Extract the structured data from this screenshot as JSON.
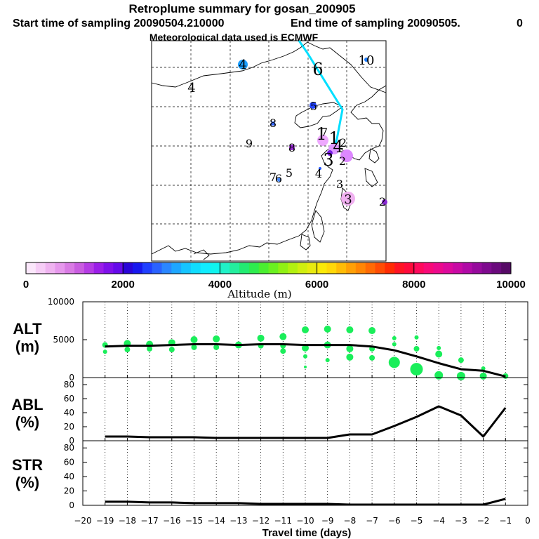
{
  "title": "Retroplume summary for gosan_200905",
  "start_label": "Start time of sampling 20090504.210000",
  "end_label": "End time of sampling 20090505.",
  "end_value": "0",
  "met_label": "Meteorological data used is ECMWF",
  "colorbar": {
    "label": "Altitude (m)",
    "ticks": [
      "0",
      "2000",
      "4000",
      "6000",
      "8000",
      "10000"
    ],
    "min": 0,
    "max": 10000
  },
  "map_labels": [
    {
      "text": "10"
    },
    {
      "text": "6"
    },
    {
      "text": "4"
    },
    {
      "text": "4"
    },
    {
      "text": "5"
    },
    {
      "text": "8"
    },
    {
      "text": "9"
    },
    {
      "text": "1"
    },
    {
      "text": "7"
    },
    {
      "text": "1"
    },
    {
      "text": "2"
    },
    {
      "text": "4"
    },
    {
      "text": "3"
    },
    {
      "text": "2"
    },
    {
      "text": "8"
    },
    {
      "text": "7"
    },
    {
      "text": "6"
    },
    {
      "text": "5"
    },
    {
      "text": "4"
    },
    {
      "text": "3"
    },
    {
      "text": "3"
    },
    {
      "text": "2"
    }
  ],
  "chart_data": {
    "type": "line",
    "xlabel": "Travel time (days)",
    "x_ticks": [
      -20,
      -19,
      -18,
      -17,
      -16,
      -15,
      -14,
      -13,
      -12,
      -11,
      -10,
      -9,
      -8,
      -7,
      -6,
      -5,
      -4,
      -3,
      -2,
      -1,
      0
    ],
    "panels": [
      {
        "name": "ALT",
        "ylabel": "ALT",
        "units": "(m)",
        "ylim": [
          0,
          10000
        ],
        "y_ticks": [
          0,
          5000,
          10000
        ],
        "x": [
          -19,
          -18,
          -17,
          -16,
          -15,
          -14,
          -13,
          -12,
          -11,
          -10,
          -9,
          -8,
          -7,
          -6,
          -5,
          -4,
          -3,
          -2,
          -1
        ],
        "mean": [
          4100,
          4200,
          4200,
          4300,
          4400,
          4400,
          4300,
          4400,
          4400,
          4300,
          4300,
          4300,
          4100,
          3600,
          2800,
          1900,
          1100,
          900,
          150
        ],
        "particles": [
          {
            "x": -19,
            "y": 4300,
            "r": 4
          },
          {
            "x": -19,
            "y": 3400,
            "r": 3
          },
          {
            "x": -18,
            "y": 4500,
            "r": 5
          },
          {
            "x": -18,
            "y": 3700,
            "r": 4
          },
          {
            "x": -17,
            "y": 4400,
            "r": 5
          },
          {
            "x": -17,
            "y": 3800,
            "r": 4
          },
          {
            "x": -16,
            "y": 4600,
            "r": 5
          },
          {
            "x": -16,
            "y": 3700,
            "r": 4
          },
          {
            "x": -15,
            "y": 5000,
            "r": 5
          },
          {
            "x": -15,
            "y": 4000,
            "r": 4
          },
          {
            "x": -14,
            "y": 5100,
            "r": 5
          },
          {
            "x": -14,
            "y": 4000,
            "r": 4
          },
          {
            "x": -13,
            "y": 4300,
            "r": 5
          },
          {
            "x": -12,
            "y": 5200,
            "r": 5
          },
          {
            "x": -12,
            "y": 4200,
            "r": 4
          },
          {
            "x": -11,
            "y": 5400,
            "r": 5
          },
          {
            "x": -11,
            "y": 4200,
            "r": 4
          },
          {
            "x": -11,
            "y": 3500,
            "r": 4
          },
          {
            "x": -10,
            "y": 6300,
            "r": 5
          },
          {
            "x": -10,
            "y": 3900,
            "r": 5
          },
          {
            "x": -10,
            "y": 2800,
            "r": 3
          },
          {
            "x": -10,
            "y": 1400,
            "r": 2
          },
          {
            "x": -9,
            "y": 6400,
            "r": 5
          },
          {
            "x": -9,
            "y": 4300,
            "r": 5
          },
          {
            "x": -9,
            "y": 2300,
            "r": 3
          },
          {
            "x": -8,
            "y": 6300,
            "r": 5
          },
          {
            "x": -8,
            "y": 3800,
            "r": 5
          },
          {
            "x": -8,
            "y": 2700,
            "r": 5
          },
          {
            "x": -7,
            "y": 6200,
            "r": 5
          },
          {
            "x": -7,
            "y": 3800,
            "r": 4
          },
          {
            "x": -7,
            "y": 2600,
            "r": 4
          },
          {
            "x": -6,
            "y": 5200,
            "r": 3
          },
          {
            "x": -6,
            "y": 4400,
            "r": 3
          },
          {
            "x": -6,
            "y": 2000,
            "r": 8
          },
          {
            "x": -5,
            "y": 5300,
            "r": 3
          },
          {
            "x": -5,
            "y": 3800,
            "r": 4
          },
          {
            "x": -5,
            "y": 1100,
            "r": 9
          },
          {
            "x": -4,
            "y": 3900,
            "r": 3
          },
          {
            "x": -4,
            "y": 3100,
            "r": 5
          },
          {
            "x": -4,
            "y": 300,
            "r": 6
          },
          {
            "x": -3,
            "y": 2300,
            "r": 4
          },
          {
            "x": -3,
            "y": 200,
            "r": 6
          },
          {
            "x": -2,
            "y": 1200,
            "r": 3
          },
          {
            "x": -2,
            "y": 200,
            "r": 5
          },
          {
            "x": -1,
            "y": 200,
            "r": 4
          }
        ]
      },
      {
        "name": "ABL",
        "ylabel": "ABL",
        "units": "(%)",
        "ylim": [
          0,
          90
        ],
        "y_ticks": [
          0,
          20,
          40,
          60,
          80
        ],
        "x": [
          -19,
          -18,
          -17,
          -16,
          -15,
          -14,
          -13,
          -12,
          -11,
          -10,
          -9,
          -8,
          -7,
          -6,
          -5,
          -4,
          -3,
          -2,
          -1
        ],
        "values": [
          6,
          6,
          5,
          5,
          5,
          4,
          4,
          4,
          4,
          4,
          4,
          9,
          9,
          21,
          34,
          49,
          36,
          6,
          47
        ]
      },
      {
        "name": "STR",
        "ylabel": "STR",
        "units": "(%)",
        "ylim": [
          0,
          90
        ],
        "y_ticks": [
          0,
          20,
          40,
          60,
          80
        ],
        "x": [
          -19,
          -18,
          -17,
          -16,
          -15,
          -14,
          -13,
          -12,
          -11,
          -10,
          -9,
          -8,
          -7,
          -6,
          -5,
          -4,
          -3,
          -2,
          -1
        ],
        "values": [
          5,
          5,
          4,
          4,
          3,
          3,
          3,
          2,
          2,
          2,
          2,
          1,
          1,
          1,
          1,
          1,
          1,
          1,
          9
        ]
      }
    ]
  }
}
